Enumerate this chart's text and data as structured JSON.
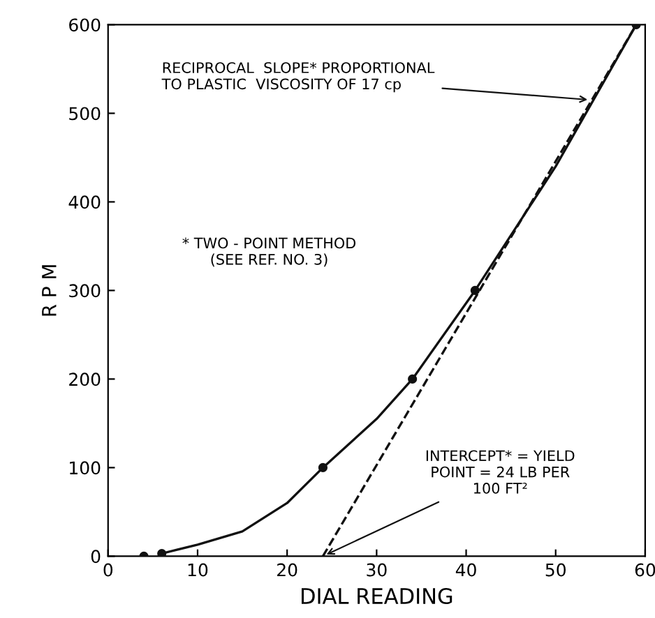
{
  "chart_data": {
    "type": "line",
    "xlabel": "DIAL READING",
    "ylabel": "R P M",
    "xlim": [
      0,
      60
    ],
    "ylim": [
      0,
      600
    ],
    "xticks": [
      0,
      10,
      20,
      30,
      40,
      50,
      60
    ],
    "yticks": [
      0,
      100,
      200,
      300,
      400,
      500,
      600
    ],
    "grid": false,
    "series": [
      {
        "color": "#111111",
        "marker": "none",
        "line_style": "solid",
        "x": [
          6,
          10,
          15,
          20,
          24,
          30,
          34,
          41,
          50,
          59
        ],
        "values": [
          3,
          13,
          28,
          60,
          100,
          155,
          200,
          300,
          440,
          600
        ]
      },
      {
        "type": "scatter",
        "color": "#111111",
        "marker": "circle",
        "x": [
          4,
          6,
          24,
          34,
          41,
          59
        ],
        "values": [
          0,
          3,
          100,
          200,
          300,
          600
        ]
      },
      {
        "type": "line",
        "color": "#111111",
        "marker": "none",
        "line_style": "dashed",
        "x": [
          24,
          59
        ],
        "values": [
          0,
          600
        ]
      }
    ],
    "annotations": [
      {
        "text": "RECIPROCAL  SLOPE* PROPORTIONAL\nTO PLASTIC  VISCOSITY OF 17 cp",
        "x": 54,
        "y": 515
      },
      "* TWO - POINT METHOD\n(SEE REF. NO. 3)",
      {
        "text": "INTERCEPT* = YIELD\nPOINT = 24 LB PER\n100 FT²",
        "x": 24,
        "y": 0
      }
    ]
  }
}
